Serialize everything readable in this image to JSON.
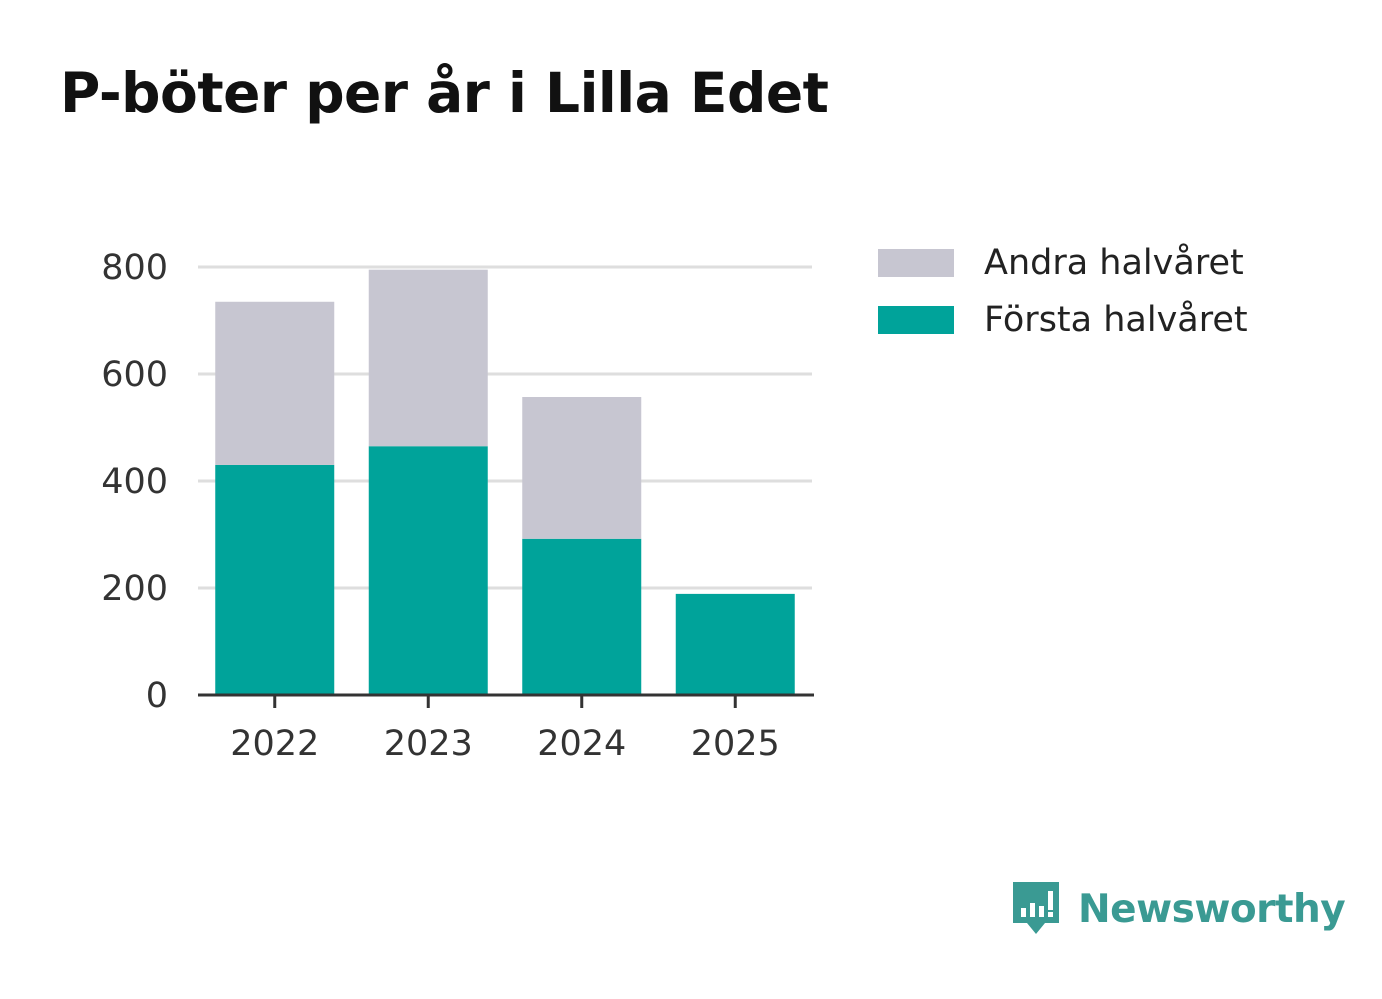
{
  "chart_data": {
    "type": "bar",
    "stacked": true,
    "title": "P-böter per år i Lilla Edet",
    "categories": [
      "2022",
      "2023",
      "2024",
      "2025"
    ],
    "series": [
      {
        "name": "Första halvåret",
        "values": [
          430,
          465,
          292,
          189
        ],
        "color": "#00a39a"
      },
      {
        "name": "Andra halvåret",
        "values": [
          305,
          330,
          265,
          0
        ],
        "color": "#c7c6d1"
      }
    ],
    "ylim": [
      0,
      800
    ],
    "yticks": [
      0,
      200,
      400,
      600,
      800
    ],
    "xlabel": "",
    "ylabel": "",
    "grid": true,
    "legend_placement": "right",
    "legend_order": [
      "Andra halvåret",
      "Första halvåret"
    ]
  },
  "brand": {
    "name": "Newsworthy",
    "logo_icon": "newsworthy-bar-chart-icon",
    "color": "#3a9a93"
  }
}
